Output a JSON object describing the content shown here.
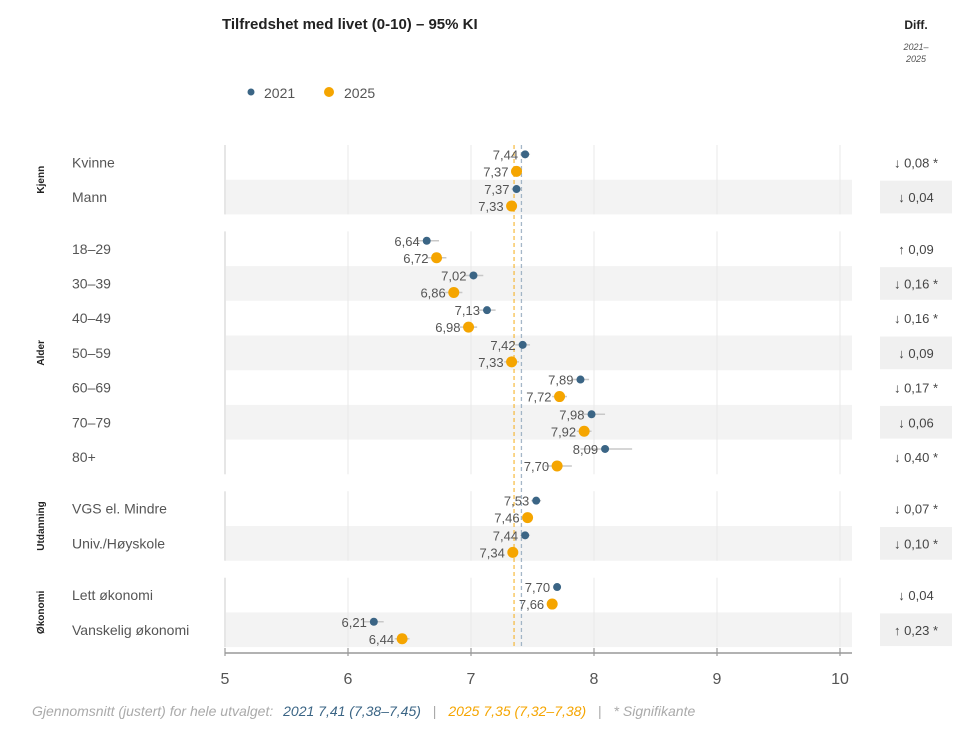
{
  "chart_data": {
    "type": "dot-range",
    "title": "Tilfredshet med livet (0-10) – 95% KI",
    "diff_header": "Diff.",
    "diff_subheader": [
      "2021–",
      "2025"
    ],
    "legend": [
      {
        "name": "2021",
        "color": "#3b6585"
      },
      {
        "name": "2025",
        "color": "#f5a500"
      }
    ],
    "legend_placement": "top-left",
    "xlim": [
      5,
      10
    ],
    "xticks": [
      "5",
      "6",
      "7",
      "8",
      "9",
      "10"
    ],
    "grid": true,
    "mean_lines": {
      "2021": 7.41,
      "2025": 7.35
    },
    "groups": [
      {
        "name": "Kjenn",
        "rows": [
          {
            "label": "Kvinne",
            "v2021": 7.44,
            "ci2021": [
              7.4,
              7.48
            ],
            "v2025": 7.37,
            "ci2025": [
              7.33,
              7.41
            ],
            "l2021": "7,44",
            "l2025": "7,37",
            "diff": "↓ 0,08 *"
          },
          {
            "label": "Mann",
            "v2021": 7.37,
            "ci2021": [
              7.33,
              7.41
            ],
            "v2025": 7.33,
            "ci2025": [
              7.29,
              7.37
            ],
            "l2021": "7,37",
            "l2025": "7,33",
            "diff": "↓ 0,04"
          }
        ]
      },
      {
        "name": "Alder",
        "rows": [
          {
            "label": "18–29",
            "v2021": 6.64,
            "ci2021": [
              6.54,
              6.74
            ],
            "v2025": 6.72,
            "ci2025": [
              6.64,
              6.8
            ],
            "l2021": "6,64",
            "l2025": "6,72",
            "diff": "↑ 0,09"
          },
          {
            "label": "30–39",
            "v2021": 7.02,
            "ci2021": [
              6.94,
              7.1
            ],
            "v2025": 6.86,
            "ci2025": [
              6.79,
              6.93
            ],
            "l2021": "7,02",
            "l2025": "6,86",
            "diff": "↓ 0,16 *"
          },
          {
            "label": "40–49",
            "v2021": 7.13,
            "ci2021": [
              7.06,
              7.2
            ],
            "v2025": 6.98,
            "ci2025": [
              6.91,
              7.05
            ],
            "l2021": "7,13",
            "l2025": "6,98",
            "diff": "↓ 0,16 *"
          },
          {
            "label": "50–59",
            "v2021": 7.42,
            "ci2021": [
              7.36,
              7.48
            ],
            "v2025": 7.33,
            "ci2025": [
              7.27,
              7.39
            ],
            "l2021": "7,42",
            "l2025": "7,33",
            "diff": "↓ 0,09"
          },
          {
            "label": "60–69",
            "v2021": 7.89,
            "ci2021": [
              7.83,
              7.96
            ],
            "v2025": 7.72,
            "ci2025": [
              7.66,
              7.78
            ],
            "l2021": "7,89",
            "l2025": "7,72",
            "diff": "↓ 0,17 *"
          },
          {
            "label": "70–79",
            "v2021": 7.98,
            "ci2021": [
              7.91,
              8.09
            ],
            "v2025": 7.92,
            "ci2025": [
              7.86,
              7.98
            ],
            "l2021": "7,98",
            "l2025": "7,92",
            "diff": "↓ 0,06"
          },
          {
            "label": "80+",
            "v2021": 8.09,
            "ci2021": [
              7.89,
              8.31
            ],
            "v2025": 7.7,
            "ci2025": [
              7.6,
              7.82
            ],
            "l2021": "8,09",
            "l2025": "7,70",
            "diff": "↓ 0,40 *"
          }
        ]
      },
      {
        "name": "Utdanning",
        "rows": [
          {
            "label": "VGS el. Mindre",
            "v2021": 7.53,
            "ci2021": [
              7.49,
              7.57
            ],
            "v2025": 7.46,
            "ci2025": [
              7.42,
              7.5
            ],
            "l2021": "7,53",
            "l2025": "7,46",
            "diff": "↓ 0,07 *"
          },
          {
            "label": "Univ./Høyskole",
            "v2021": 7.44,
            "ci2021": [
              7.4,
              7.48
            ],
            "v2025": 7.34,
            "ci2025": [
              7.3,
              7.38
            ],
            "l2021": "7,44",
            "l2025": "7,34",
            "diff": "↓ 0,10 *"
          }
        ]
      },
      {
        "name": "Økonomi",
        "rows": [
          {
            "label": "Lett økonomi",
            "v2021": 7.7,
            "ci2021": [
              7.67,
              7.73
            ],
            "v2025": 7.66,
            "ci2025": [
              7.63,
              7.69
            ],
            "l2021": "7,70",
            "l2025": "7,66",
            "diff": "↓ 0,04"
          },
          {
            "label": "Vanskelig økonomi",
            "v2021": 6.21,
            "ci2021": [
              6.13,
              6.29
            ],
            "v2025": 6.44,
            "ci2025": [
              6.38,
              6.5
            ],
            "l2021": "6,21",
            "l2025": "6,44",
            "diff": "↑ 0,23 *"
          }
        ]
      }
    ],
    "footer": {
      "prefix": "Gjennomsnitt (justert) for hele utvalget:",
      "mean2021": "2021 7,41 (7,38–7,45)",
      "sep": "|",
      "mean2025": "2025 7,35 (7,32–7,38)",
      "note": "* Signifikante"
    }
  }
}
